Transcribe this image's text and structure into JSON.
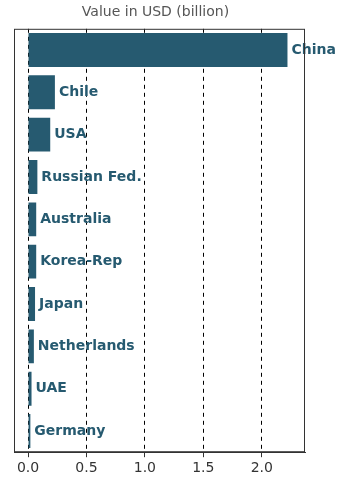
{
  "chart_data": {
    "type": "bar",
    "orientation": "horizontal",
    "title": "Value in USD (billion)",
    "categories": [
      "China",
      "Chile",
      "USA",
      "Russian Fed.",
      "Australia",
      "Korea-Rep",
      "Japan",
      "Netherlands",
      "UAE",
      "Germany"
    ],
    "values": [
      2.22,
      0.23,
      0.19,
      0.08,
      0.07,
      0.07,
      0.06,
      0.05,
      0.03,
      0.02
    ],
    "color": "#265a70",
    "xlim": [
      -0.12,
      2.37
    ],
    "xticks": [
      {
        "value": 0,
        "label": "0.0"
      },
      0.5,
      {
        "value": 1,
        "label": "1.0"
      },
      1.5,
      {
        "value": 2,
        "label": "2.0"
      }
    ],
    "grid": true,
    "tick_labels": "x"
  }
}
